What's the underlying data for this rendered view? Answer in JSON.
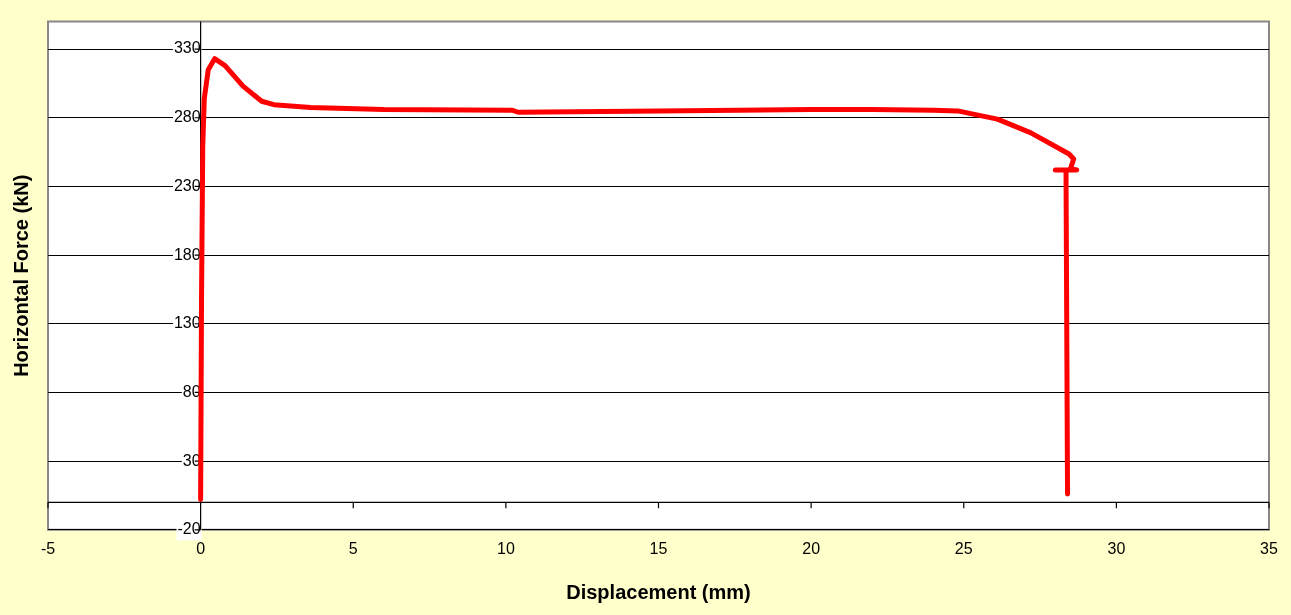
{
  "chart_data": {
    "type": "line",
    "xlabel": "Displacement (mm)",
    "ylabel": "Horizontal Force (kN)",
    "xlim": [
      -5,
      35
    ],
    "xticks": [
      -5,
      0,
      5,
      10,
      15,
      20,
      25,
      30,
      35
    ],
    "ylim": [
      -20,
      350
    ],
    "yticks": [
      -20,
      30,
      80,
      130,
      180,
      230,
      280,
      330
    ],
    "grid": "y",
    "legend": false,
    "marker": "none",
    "line_style": "solid",
    "series": [
      {
        "color": "#ff0000",
        "x": [
          0,
          0.03,
          0.07,
          0.12,
          0.25,
          0.46,
          0.8,
          1.39,
          2,
          2.4,
          3.6,
          6,
          10.2,
          10.4,
          15,
          20,
          22,
          24,
          24.8,
          26.1,
          27.2,
          28.45,
          28.6,
          28.5,
          28.7,
          28,
          28.35,
          28.4
        ],
        "values": [
          2,
          150,
          260,
          294,
          315,
          323,
          318,
          303,
          292,
          289.5,
          287.5,
          286,
          285.5,
          284,
          285,
          286,
          286,
          285.5,
          285,
          279,
          269,
          253.6,
          250,
          243,
          242,
          242,
          242,
          6
        ]
      }
    ]
  }
}
